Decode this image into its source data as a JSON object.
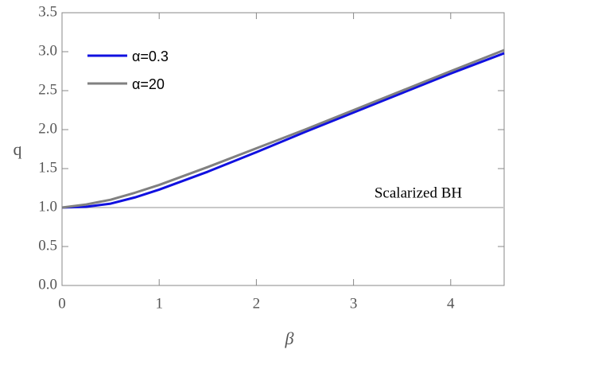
{
  "chart_data": {
    "type": "line",
    "x_label": "β",
    "y_label": "q",
    "x": [
      0,
      0.25,
      0.5,
      0.75,
      1,
      1.5,
      2,
      2.5,
      3,
      3.5,
      4,
      4.55
    ],
    "series": [
      {
        "name": "α=0.3",
        "color": "#1010e0",
        "values": [
          1,
          1.01,
          1.05,
          1.13,
          1.23,
          1.46,
          1.71,
          1.97,
          2.22,
          2.47,
          2.72,
          2.98
        ]
      },
      {
        "name": "α=20",
        "color": "#808080",
        "values": [
          1,
          1.04,
          1.1,
          1.19,
          1.29,
          1.52,
          1.76,
          2.0,
          2.25,
          2.5,
          2.75,
          3.02
        ]
      }
    ],
    "hlines": [
      {
        "value": 1,
        "label": "Scalarized BH",
        "color": "#c8c8c8"
      }
    ],
    "xlim": [
      0,
      4.55
    ],
    "xticks": [
      0,
      1,
      2,
      3,
      4
    ],
    "ylim": [
      0,
      3.5
    ],
    "yticks": [
      {
        "value": 0,
        "label": "0.0"
      },
      {
        "value": 0.5,
        "label": "0.5"
      },
      {
        "value": 1,
        "label": "1.0"
      },
      {
        "value": 1.5,
        "label": "1.5"
      },
      {
        "value": 2,
        "label": "2.0"
      },
      {
        "value": 2.5,
        "label": "2.5"
      },
      {
        "value": 3,
        "label": "3.0"
      },
      {
        "value": 3.5,
        "label": "3.5"
      }
    ],
    "legend": "upper-left",
    "grid": false
  }
}
